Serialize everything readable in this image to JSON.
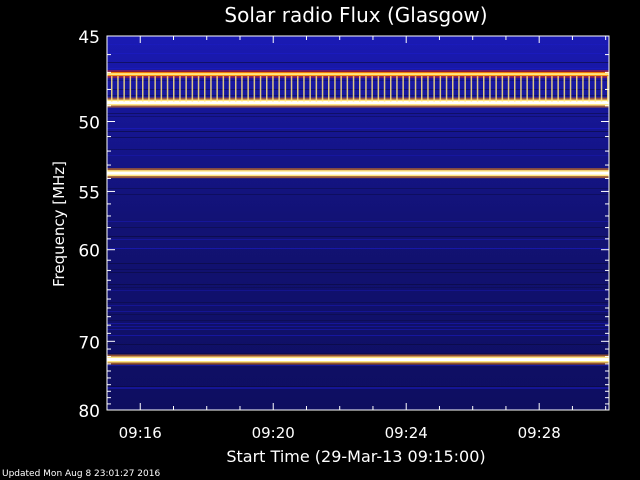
{
  "chart_data": {
    "type": "heatmap",
    "title": "Solar radio Flux (Glasgow)",
    "xlabel": "Start Time (29-Mar-13 09:15:00)",
    "ylabel": "Frequency [MHz]",
    "x_ticks": [
      "09:16",
      "09:20",
      "09:24",
      "09:28"
    ],
    "x_tick_minutes": [
      16,
      20,
      24,
      28
    ],
    "x_range_minutes": [
      15.0,
      30.1
    ],
    "y_ticks": [
      45,
      50,
      55,
      60,
      70,
      80
    ],
    "y_range": [
      45,
      80
    ],
    "y_scale": "reciprocal",
    "colormap": [
      "#000000",
      "#0a0a3c",
      "#12127a",
      "#1c1cc8",
      "#d42020",
      "#ff8a00",
      "#ffe680",
      "#ffffff"
    ],
    "bright_bands": [
      {
        "freq_mhz": 47.1,
        "intensity": "high"
      },
      {
        "freq_mhz": 48.8,
        "intensity": "very-high"
      },
      {
        "freq_mhz": 53.6,
        "intensity": "very-high"
      },
      {
        "freq_mhz": 72.4,
        "intensity": "very-high"
      },
      {
        "freq_mhz": 76.5,
        "intensity": "low"
      }
    ]
  },
  "footer": {
    "updated": "Updated Mon Aug  8 23:01:27 2016"
  }
}
